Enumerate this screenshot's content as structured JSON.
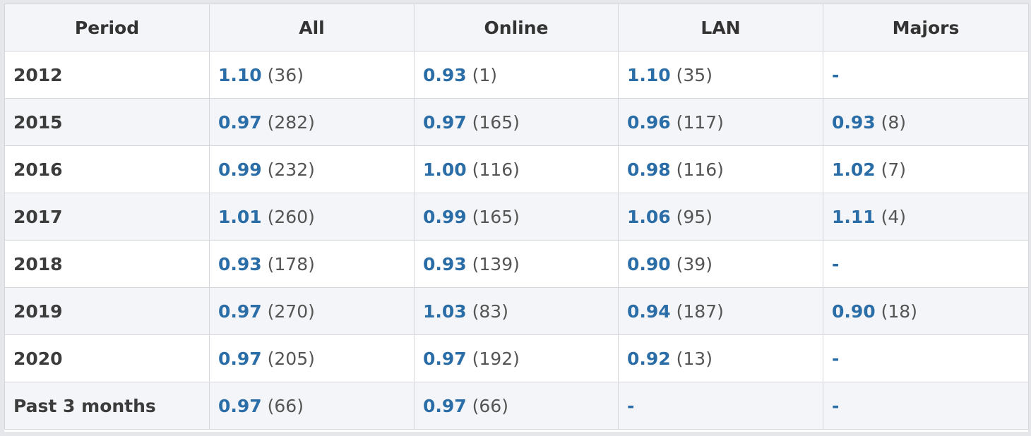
{
  "table": {
    "headers": [
      "Period",
      "All",
      "Online",
      "LAN",
      "Majors"
    ],
    "rows": [
      {
        "period": "2012",
        "cells": [
          {
            "rating": "1.10",
            "count": "(36)"
          },
          {
            "rating": "0.93",
            "count": "(1)"
          },
          {
            "rating": "1.10",
            "count": "(35)"
          },
          {
            "rating": "-",
            "count": ""
          }
        ]
      },
      {
        "period": "2015",
        "cells": [
          {
            "rating": "0.97",
            "count": "(282)"
          },
          {
            "rating": "0.97",
            "count": "(165)"
          },
          {
            "rating": "0.96",
            "count": "(117)"
          },
          {
            "rating": "0.93",
            "count": "(8)"
          }
        ]
      },
      {
        "period": "2016",
        "cells": [
          {
            "rating": "0.99",
            "count": "(232)"
          },
          {
            "rating": "1.00",
            "count": "(116)"
          },
          {
            "rating": "0.98",
            "count": "(116)"
          },
          {
            "rating": "1.02",
            "count": "(7)"
          }
        ]
      },
      {
        "period": "2017",
        "cells": [
          {
            "rating": "1.01",
            "count": "(260)"
          },
          {
            "rating": "0.99",
            "count": "(165)"
          },
          {
            "rating": "1.06",
            "count": "(95)"
          },
          {
            "rating": "1.11",
            "count": "(4)"
          }
        ]
      },
      {
        "period": "2018",
        "cells": [
          {
            "rating": "0.93",
            "count": "(178)"
          },
          {
            "rating": "0.93",
            "count": "(139)"
          },
          {
            "rating": "0.90",
            "count": "(39)"
          },
          {
            "rating": "-",
            "count": ""
          }
        ]
      },
      {
        "period": "2019",
        "cells": [
          {
            "rating": "0.97",
            "count": "(270)"
          },
          {
            "rating": "1.03",
            "count": "(83)"
          },
          {
            "rating": "0.94",
            "count": "(187)"
          },
          {
            "rating": "0.90",
            "count": "(18)"
          }
        ]
      },
      {
        "period": "2020",
        "cells": [
          {
            "rating": "0.97",
            "count": "(205)"
          },
          {
            "rating": "0.97",
            "count": "(192)"
          },
          {
            "rating": "0.92",
            "count": "(13)"
          },
          {
            "rating": "-",
            "count": ""
          }
        ]
      },
      {
        "period": "Past 3 months",
        "cells": [
          {
            "rating": "0.97",
            "count": "(66)"
          },
          {
            "rating": "0.97",
            "count": "(66)"
          },
          {
            "rating": "-",
            "count": ""
          },
          {
            "rating": "-",
            "count": ""
          }
        ]
      }
    ]
  },
  "colors": {
    "rating": "#2a6da7",
    "header_bg": "#f4f5f8",
    "border": "#d5d7dc"
  }
}
